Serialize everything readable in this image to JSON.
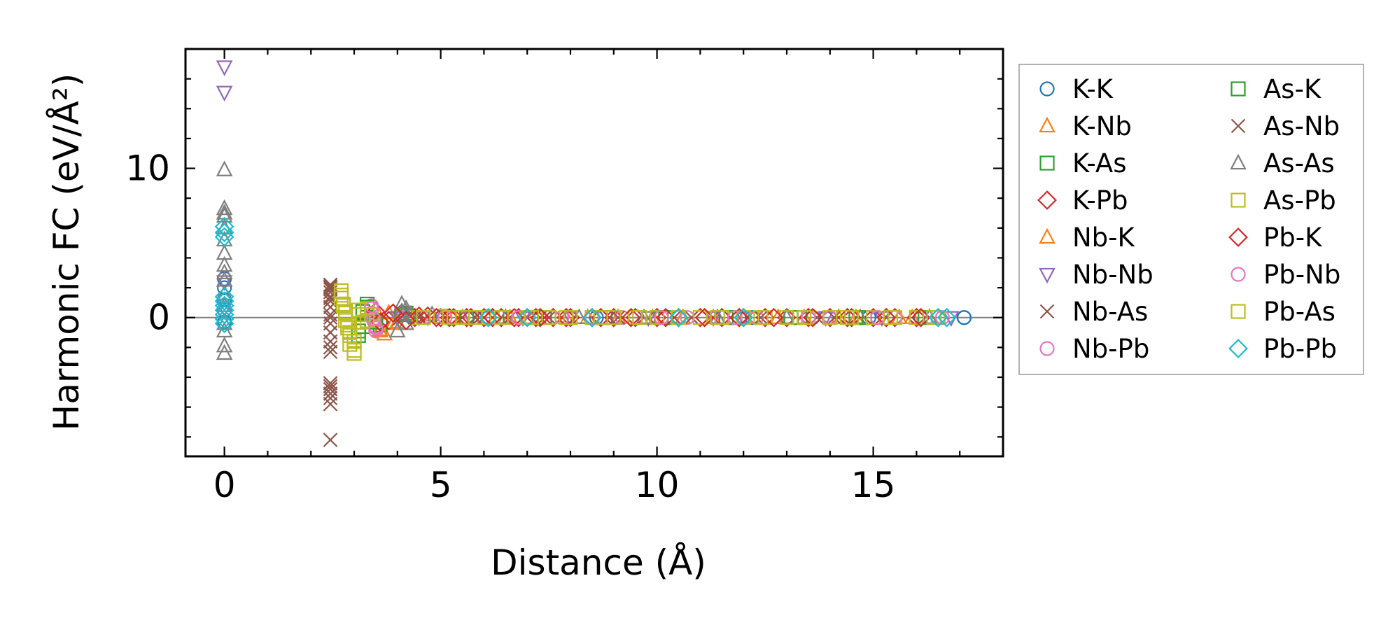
{
  "chart_data": {
    "type": "scatter",
    "xlabel": "Distance (Å)",
    "ylabel": "Harmonic FC (eV/Å²)",
    "xlim": [
      -0.9,
      18.0
    ],
    "ylim": [
      -9.3,
      18.0
    ],
    "xticks": [
      0,
      5,
      10,
      15
    ],
    "yticks": [
      0,
      10
    ],
    "x_minor_step": 1,
    "y_minor_step": 2,
    "zero_line": true,
    "grid": false,
    "legend_placement": "outside right",
    "legend_columns": 2,
    "series": [
      {
        "name": "K-K",
        "marker": "circle",
        "color": "#1f77b4",
        "x": [
          0,
          0,
          0,
          0,
          0,
          4.3,
          6.1,
          8.6,
          10.5,
          12.2,
          13.6,
          14.9,
          16.1,
          17.1,
          17.1
        ],
        "y": [
          2.6,
          2.0,
          1.2,
          0.5,
          -0.3,
          0.1,
          0.0,
          0.0,
          0.0,
          0.0,
          0.0,
          0.0,
          0.0,
          0.0,
          0.0
        ]
      },
      {
        "name": "K-Nb",
        "marker": "triangle-up",
        "color": "#ff7f0e",
        "x": [
          3.6,
          3.7,
          3.5,
          3.9,
          5.3,
          6.6,
          7.9,
          9.1,
          10.6,
          12.0,
          13.4,
          14.6,
          15.9
        ],
        "y": [
          -0.9,
          -1.1,
          0.5,
          -0.4,
          0.0,
          0.0,
          0.0,
          0.0,
          0.0,
          0.0,
          0.0,
          0.0,
          0.0
        ]
      },
      {
        "name": "K-As",
        "marker": "square",
        "color": "#2ca02c",
        "x": [
          3.1,
          3.2,
          3.2,
          3.3,
          3.4,
          3.6,
          4.2,
          5.0,
          6.3,
          7.4,
          8.8,
          10.2,
          11.8,
          13.3,
          14.8,
          16.2
        ],
        "y": [
          -1.2,
          -0.6,
          0.4,
          0.9,
          0.2,
          -0.5,
          0.3,
          0.1,
          0.0,
          0.0,
          0.0,
          0.0,
          0.0,
          0.0,
          0.0,
          0.0
        ]
      },
      {
        "name": "K-Pb",
        "marker": "diamond",
        "color": "#d62728",
        "x": [
          3.5,
          3.8,
          4.1,
          4.4,
          4.7,
          5.0,
          5.3,
          5.6,
          6.0,
          6.4,
          6.8,
          7.2,
          7.6,
          8.0,
          8.5,
          9.0,
          9.5,
          10.0,
          10.5,
          11.0,
          11.5,
          12.0,
          12.5,
          13.0,
          13.5,
          14.0,
          14.5,
          15.0,
          15.5,
          16.0
        ],
        "y": [
          0.4,
          -0.2,
          0.3,
          0.0,
          0.1,
          0.0,
          0.0,
          0.0,
          0.0,
          0.0,
          0.0,
          0.0,
          0.0,
          0.0,
          0.0,
          0.0,
          0.0,
          0.0,
          0.0,
          0.0,
          0.0,
          0.0,
          0.0,
          0.0,
          0.0,
          0.0,
          0.0,
          0.0,
          0.0,
          0.0
        ]
      },
      {
        "name": "Nb-K",
        "marker": "triangle-up",
        "color": "#ff7f0e",
        "x": [
          3.6,
          3.8,
          4.0,
          5.5,
          7.0,
          8.4,
          9.9,
          11.3,
          12.8,
          14.2,
          15.6
        ],
        "y": [
          -0.8,
          0.3,
          -0.3,
          0.0,
          0.0,
          0.0,
          0.0,
          0.0,
          0.0,
          0.0,
          0.0
        ]
      },
      {
        "name": "Nb-Nb",
        "marker": "triangle-down",
        "color": "#9467bd",
        "x": [
          0,
          0,
          0,
          0,
          4.0,
          5.7,
          6.9,
          8.0,
          9.8,
          11.3,
          12.0,
          13.9,
          15.2,
          16.8
        ],
        "y": [
          16.8,
          15.1,
          2.4,
          0.6,
          0.0,
          0.0,
          0.0,
          0.0,
          0.0,
          0.0,
          0.0,
          0.0,
          0.0,
          0.0
        ]
      },
      {
        "name": "Nb-As",
        "marker": "x",
        "color": "#8c564b",
        "x": [
          2.45,
          2.45,
          2.45,
          2.45,
          2.45,
          2.45,
          2.45,
          2.45,
          2.45,
          2.45,
          2.45,
          2.45,
          2.45,
          2.45,
          2.45,
          2.45,
          2.45,
          4.5,
          5.8,
          7.3,
          8.9,
          10.4,
          12.1,
          13.7,
          15.3
        ],
        "y": [
          -8.2,
          -5.4,
          -5.1,
          -4.8,
          -4.4,
          -2.3,
          -1.6,
          -1.0,
          -0.4,
          0.2,
          0.7,
          1.1,
          1.4,
          1.7,
          1.9,
          2.1,
          2.2,
          0.0,
          0.0,
          0.0,
          0.0,
          0.0,
          0.0,
          0.0,
          0.0
        ]
      },
      {
        "name": "Nb-Pb",
        "marker": "circle",
        "color": "#e377c2",
        "x": [
          3.4,
          3.4,
          3.45,
          3.5,
          3.5,
          4.6,
          6.2,
          7.8,
          9.2,
          10.7,
          12.3,
          14.0,
          15.5
        ],
        "y": [
          0.8,
          0.3,
          -0.2,
          -0.6,
          -0.9,
          0.0,
          0.0,
          0.0,
          0.0,
          0.0,
          0.0,
          0.0,
          0.0
        ]
      },
      {
        "name": "As-K",
        "marker": "square",
        "color": "#2ca02c",
        "x": [
          3.1,
          3.3,
          3.5,
          4.1,
          5.6,
          7.1,
          8.7,
          10.1,
          11.6,
          13.1,
          14.6,
          16.0
        ],
        "y": [
          -0.9,
          0.7,
          -0.3,
          0.2,
          0.0,
          0.0,
          0.0,
          0.0,
          0.0,
          0.0,
          0.0,
          0.0
        ]
      },
      {
        "name": "As-Nb",
        "marker": "x",
        "color": "#8c564b",
        "x": [
          2.45,
          2.45,
          2.45,
          2.45,
          2.45,
          2.45,
          4.4,
          6.0,
          7.5,
          9.1,
          10.8,
          12.4,
          14.1
        ],
        "y": [
          -5.8,
          -4.6,
          -2.0,
          0.0,
          1.3,
          2.0,
          0.0,
          0.0,
          0.0,
          0.0,
          0.0,
          0.0,
          0.0
        ]
      },
      {
        "name": "As-As",
        "marker": "triangle-up",
        "color": "#7f7f7f",
        "x": [
          0,
          0,
          0,
          0,
          0,
          0,
          0,
          0,
          0,
          0,
          0,
          0,
          0,
          0,
          0,
          0,
          4.0,
          4.1,
          4.1,
          4.2,
          4.2,
          4.3,
          4.8,
          5.0,
          6.5,
          8.2,
          9.7,
          11.4,
          13.0,
          14.7,
          16.3
        ],
        "y": [
          9.9,
          7.3,
          7.0,
          6.8,
          6.0,
          5.2,
          4.3,
          3.5,
          3.0,
          2.5,
          1.6,
          0.8,
          -0.4,
          -0.9,
          -1.9,
          -2.4,
          -0.9,
          0.9,
          0.4,
          -0.4,
          0.6,
          0.2,
          0.2,
          0.0,
          0.0,
          0.0,
          0.0,
          0.0,
          0.0,
          0.0,
          0.0
        ]
      },
      {
        "name": "As-Pb",
        "marker": "square",
        "color": "#bcbd22",
        "x": [
          2.7,
          2.7,
          2.75,
          2.8,
          2.8,
          2.85,
          2.9,
          2.9,
          3.0,
          3.0,
          3.1,
          3.2,
          3.3,
          3.4,
          4.5,
          5.0,
          5.5,
          6.0,
          6.5,
          7.0,
          7.5,
          8.0,
          8.5,
          9.0,
          9.5,
          10.0,
          10.5,
          11.0,
          11.5,
          12.0,
          12.5,
          13.0,
          13.5,
          14.0,
          14.5,
          15.0,
          15.5,
          16.0,
          16.5
        ],
        "y": [
          1.8,
          1.3,
          0.8,
          0.3,
          -0.2,
          -0.7,
          -1.2,
          -1.8,
          -2.4,
          -2.2,
          0.5,
          -0.3,
          0.6,
          0.2,
          0.0,
          0.1,
          0.0,
          0.0,
          0.0,
          0.0,
          0.0,
          0.0,
          0.0,
          0.0,
          0.0,
          0.0,
          0.0,
          0.0,
          0.0,
          0.0,
          0.0,
          0.0,
          0.0,
          0.0,
          0.0,
          0.0,
          0.0,
          0.0,
          0.0
        ]
      },
      {
        "name": "Pb-K",
        "marker": "diamond",
        "color": "#d62728",
        "x": [
          3.6,
          3.9,
          4.2,
          4.5,
          4.9,
          5.2,
          5.7,
          6.2,
          6.7,
          7.3,
          7.9,
          8.7,
          9.4,
          10.2,
          11.1,
          11.9,
          12.7,
          13.6,
          14.4,
          15.3,
          16.1
        ],
        "y": [
          -0.3,
          0.3,
          -0.2,
          0.1,
          0.0,
          0.0,
          0.0,
          0.0,
          0.0,
          0.0,
          0.0,
          0.0,
          0.0,
          0.0,
          0.0,
          0.0,
          0.0,
          0.0,
          0.0,
          0.0,
          0.0
        ]
      },
      {
        "name": "Pb-Nb",
        "marker": "circle",
        "color": "#e377c2",
        "x": [
          3.4,
          3.45,
          3.5,
          5.1,
          6.8,
          8.5,
          10.1,
          11.8,
          13.5,
          15.1,
          16.6
        ],
        "y": [
          0.6,
          -0.1,
          -0.7,
          0.0,
          0.0,
          0.0,
          0.0,
          0.0,
          0.0,
          0.0,
          0.0
        ]
      },
      {
        "name": "Pb-As",
        "marker": "square",
        "color": "#bcbd22",
        "x": [
          2.7,
          2.75,
          2.8,
          2.85,
          2.9,
          3.0,
          3.1,
          3.3,
          4.6,
          5.2,
          5.8,
          6.4,
          7.1,
          7.9,
          8.7,
          9.6,
          10.5,
          11.4,
          12.4,
          13.4,
          14.4,
          15.4,
          16.4
        ],
        "y": [
          1.5,
          0.9,
          0.4,
          -0.5,
          -1.0,
          -1.6,
          0.2,
          -0.2,
          0.0,
          0.0,
          0.0,
          0.0,
          0.0,
          0.0,
          0.0,
          0.0,
          0.0,
          0.0,
          0.0,
          0.0,
          0.0,
          0.0,
          0.0
        ]
      },
      {
        "name": "Pb-Pb",
        "marker": "diamond",
        "color": "#17becf",
        "x": [
          0,
          0,
          0,
          0,
          0,
          0,
          0,
          0,
          0,
          0,
          6.1,
          7.0,
          8.5,
          10.5,
          12.0,
          16.5,
          16.7
        ],
        "y": [
          6.1,
          5.7,
          5.4,
          1.4,
          1.1,
          0.8,
          0.5,
          0.2,
          -0.1,
          -0.4,
          0.0,
          0.0,
          0.0,
          0.0,
          0.0,
          0.0,
          0.0
        ]
      }
    ]
  }
}
